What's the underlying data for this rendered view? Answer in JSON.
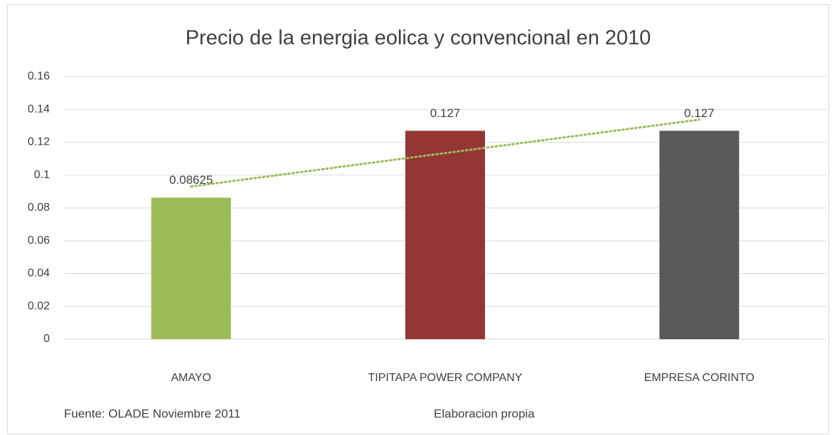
{
  "chart_data": {
    "type": "bar",
    "title": "Precio de la energia eolica y convencional en 2010",
    "categories": [
      "AMAYO",
      "TIPITAPA POWER COMPANY",
      "EMPRESA CORINTO"
    ],
    "values": [
      0.08625,
      0.127,
      0.127
    ],
    "colors": [
      "#9bbb59",
      "#943634",
      "#595959"
    ],
    "ylim": [
      0,
      0.16
    ],
    "yticks": [
      0,
      0.02,
      0.04,
      0.06,
      0.08,
      0.1,
      0.12,
      0.14,
      0.16
    ],
    "grid": true,
    "trendline": "linear",
    "trendline_color": "#9bbb59",
    "notes": [
      "Fuente: OLADE Noviembre 2011",
      "Elaboracion propia"
    ]
  }
}
